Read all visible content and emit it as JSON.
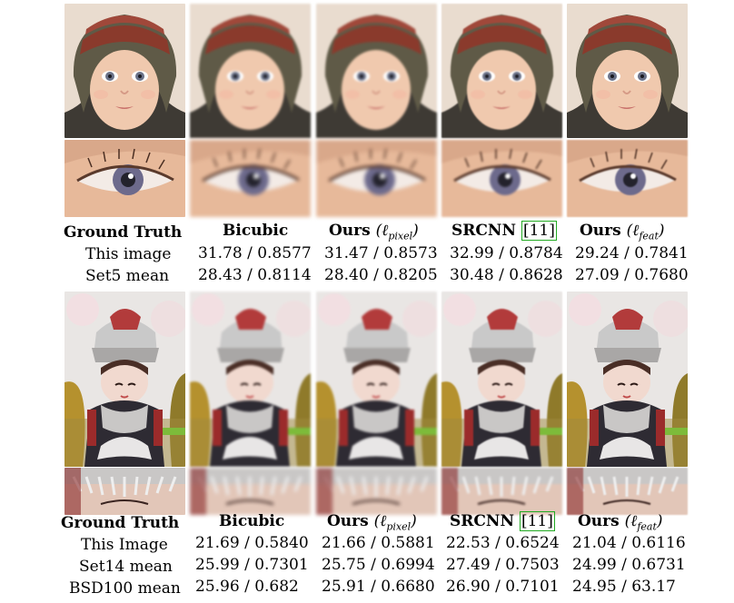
{
  "top_table": {
    "headers": {
      "gt": "Ground Truth",
      "bicubic": "Bicubic",
      "ours_pixel": "Ours",
      "ours_pixel_math": "(ℓ",
      "ours_pixel_sub": "pixel",
      "srcnn": "SRCNN",
      "srcnn_ref": "[11]",
      "ours_feat": "Ours",
      "ours_feat_math": "(ℓ",
      "ours_feat_sub": "feat"
    },
    "rows": [
      {
        "label": "This image",
        "values": [
          "31.78 / 0.8577",
          "31.47 / 0.8573",
          "32.99 / 0.8784",
          "29.24 / 0.7841"
        ]
      },
      {
        "label": "Set5 mean",
        "values": [
          "28.43 / 0.8114",
          "28.40 / 0.8205",
          "30.48 / 0.8628",
          "27.09 / 0.7680"
        ]
      }
    ]
  },
  "bottom_table": {
    "headers": {
      "gt": "Ground Truth",
      "bicubic": "Bicubic",
      "ours_pixel": "Ours",
      "ours_pixel_math": "(ℓ",
      "ours_pixel_sub": "pixel",
      "srcnn": "SRCNN",
      "srcnn_ref": "[11]",
      "ours_feat": "Ours",
      "ours_feat_math": "(ℓ",
      "ours_feat_sub": "feat"
    },
    "rows": [
      {
        "label": "This Image",
        "values": [
          "21.69 / 0.5840",
          "21.66 / 0.5881",
          "22.53 / 0.6524",
          "21.04 / 0.6116"
        ]
      },
      {
        "label": "Set14 mean",
        "values": [
          "25.99 / 0.7301",
          "25.75 / 0.6994",
          "27.49 / 0.7503",
          "24.99 / 0.6731"
        ]
      },
      {
        "label": "BSD100 mean",
        "values": [
          "25.96 / 0.682",
          "25.91 / 0.6680",
          "26.90 / 0.7101",
          "24.95 / 63.17"
        ]
      }
    ]
  },
  "colors": {
    "citation_box": "#22aa22"
  }
}
